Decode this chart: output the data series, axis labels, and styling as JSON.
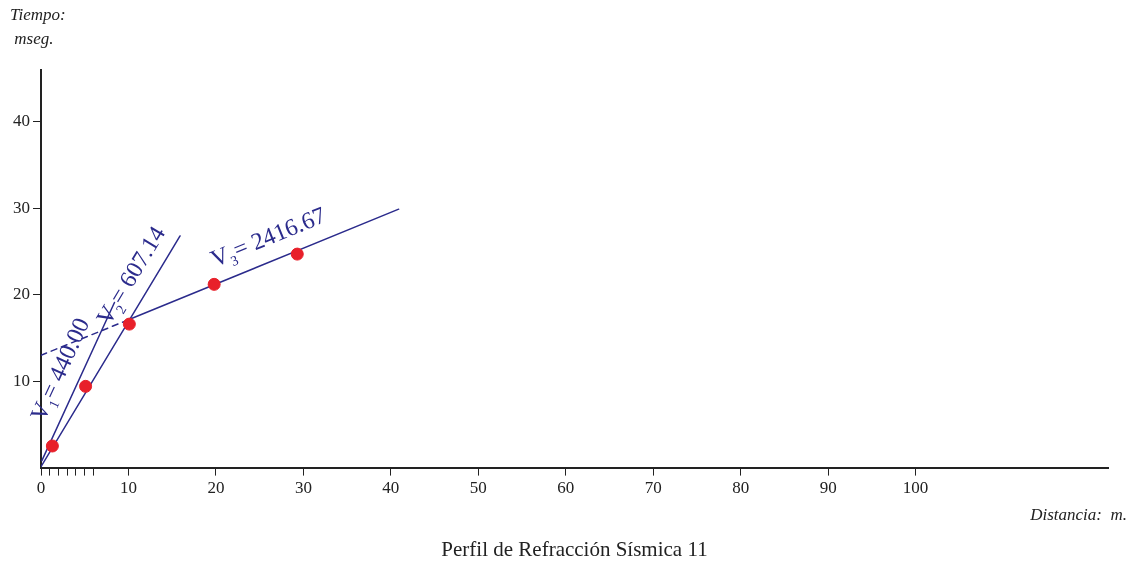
{
  "chart_data": {
    "type": "scatter",
    "title": "Perfil de Refracción Sísmica 11",
    "xlabel": "Distancia:  m.",
    "ylabel": "Tiempo:\n mseg.",
    "xlim": [
      0,
      122
    ],
    "ylim": [
      0,
      46
    ],
    "xticks": [
      0,
      {
        "value": 1,
        "label": null
      },
      {
        "value": 2,
        "label": null
      },
      {
        "value": 3,
        "label": null
      },
      {
        "value": 4,
        "label": null
      },
      {
        "value": 5,
        "label": null
      },
      {
        "value": 6,
        "label": null
      },
      10,
      20,
      30,
      40,
      50,
      60,
      70,
      80,
      90,
      100
    ],
    "yticks": [
      10,
      20,
      30,
      40
    ],
    "grid": false,
    "legend": false,
    "series": [
      {
        "color": "#e8202a",
        "marker": "circle",
        "x": [
          1.3,
          5.1,
          10.1,
          19.8,
          29.3
        ],
        "values": [
          2.5,
          9.4,
          16.6,
          21.2,
          24.7
        ]
      },
      {
        "type": "line",
        "color": "#2b2b8c",
        "marker": "none",
        "line_style": "solid",
        "x": [
          0.1,
          8.4
        ],
        "values": [
          0.8,
          19.1
        ]
      },
      {
        "type": "line",
        "color": "#2b2b8c",
        "marker": "none",
        "line_style": "solid",
        "x": [
          0,
          15.9
        ],
        "values": [
          0.1,
          26.8
        ]
      },
      {
        "type": "line",
        "color": "#2b2b8c",
        "marker": "none",
        "line_style": "solid",
        "x": [
          10,
          40.9
        ],
        "values": [
          17.1,
          29.9
        ]
      },
      {
        "type": "line",
        "color": "#2b2b8c",
        "marker": "none",
        "line_style": "dashed",
        "x": [
          0,
          10
        ],
        "values": [
          13.0,
          17.1
        ]
      }
    ],
    "annotations": [
      "V$_{1}$= 440.00",
      "V$_{2}$= 607.14",
      "V$_{3}$= 2416.67"
    ]
  }
}
